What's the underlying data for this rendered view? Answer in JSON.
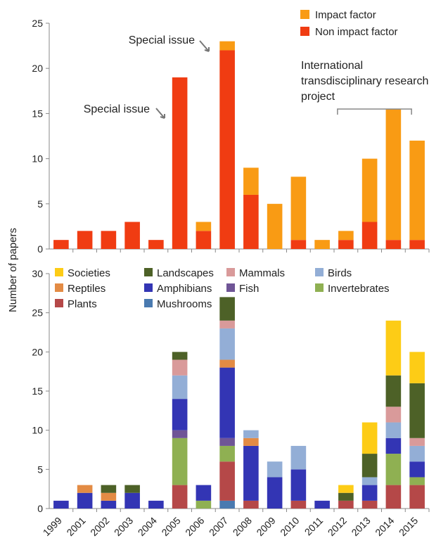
{
  "chart_data": [
    {
      "type": "bar",
      "stacked": true,
      "title": "",
      "xlabel": "",
      "ylabel": "Number of papers",
      "ylim": [
        0,
        25
      ],
      "yticks": [
        0,
        5,
        10,
        15,
        20,
        25
      ],
      "categories": [
        "1999",
        "2001",
        "2002",
        "2003",
        "2004",
        "2005",
        "2006",
        "2007",
        "2008",
        "2009",
        "2010",
        "2011",
        "2012",
        "2013",
        "2014",
        "2015"
      ],
      "legend_position": "top-right",
      "series": [
        {
          "name": "Non impact factor",
          "color": "#f03c12",
          "values": [
            1,
            2,
            2,
            3,
            1,
            19,
            2,
            22,
            6,
            0,
            1,
            0,
            1,
            3,
            1,
            1
          ]
        },
        {
          "name": "Impact factor",
          "color": "#f99b14",
          "values": [
            0,
            0,
            0,
            0,
            0,
            0,
            1,
            1,
            3,
            5,
            7,
            1,
            1,
            7,
            14.5,
            11
          ]
        }
      ],
      "annotations": [
        {
          "text": "Special issue",
          "category": "2005"
        },
        {
          "text": "Special issue",
          "category": "2007"
        },
        {
          "text": "International transdisciplinary research project",
          "lines": [
            "International",
            "transdisciplinary research",
            "project"
          ],
          "range": [
            "2012",
            "2015"
          ]
        }
      ]
    },
    {
      "type": "bar",
      "stacked": true,
      "title": "",
      "xlabel": "",
      "ylabel": "Number of papers",
      "ylim": [
        0,
        30
      ],
      "yticks": [
        0,
        5,
        10,
        15,
        20,
        25,
        30
      ],
      "categories": [
        "1999",
        "2001",
        "2002",
        "2003",
        "2004",
        "2005",
        "2006",
        "2007",
        "2008",
        "2009",
        "2010",
        "2011",
        "2012",
        "2013",
        "2014",
        "2015"
      ],
      "legend_position": "top",
      "series": [
        {
          "name": "Mushrooms",
          "color": "#4a7ab0",
          "values": [
            0,
            0,
            0,
            0,
            0,
            0,
            0,
            1,
            0,
            0,
            0,
            0,
            0,
            0,
            0,
            0
          ]
        },
        {
          "name": "Plants",
          "color": "#b54848",
          "values": [
            0,
            0,
            0,
            0,
            0,
            3,
            0,
            5,
            1,
            0,
            1,
            0,
            1,
            1,
            3,
            3
          ]
        },
        {
          "name": "Invertebrates",
          "color": "#8fb052",
          "values": [
            0,
            0,
            0,
            0,
            0,
            6,
            1,
            2,
            0,
            0,
            0,
            0,
            0,
            0,
            4,
            1
          ]
        },
        {
          "name": "Fish",
          "color": "#6f5596",
          "values": [
            0,
            0,
            0,
            0,
            0,
            1,
            0,
            1,
            0,
            0,
            0,
            0,
            0,
            0,
            0,
            0
          ]
        },
        {
          "name": "Amphibians",
          "color": "#3335b4",
          "values": [
            1,
            2,
            1,
            2,
            1,
            4,
            2,
            9,
            7,
            4,
            4,
            1,
            0,
            2,
            2,
            2
          ]
        },
        {
          "name": "Reptiles",
          "color": "#e38b44",
          "values": [
            0,
            1,
            1,
            0,
            0,
            0,
            0,
            1,
            1,
            0,
            0,
            0,
            0,
            0,
            0,
            0
          ]
        },
        {
          "name": "Birds",
          "color": "#93aed6",
          "values": [
            0,
            0,
            0,
            0,
            0,
            3,
            0,
            4,
            1,
            2,
            3,
            0,
            0,
            1,
            2,
            2
          ]
        },
        {
          "name": "Mammals",
          "color": "#d99a9a",
          "values": [
            0,
            0,
            0,
            0,
            0,
            2,
            0,
            1,
            0,
            0,
            0,
            0,
            0,
            0,
            2,
            1
          ]
        },
        {
          "name": "Landscapes",
          "color": "#4d6127",
          "values": [
            0,
            0,
            1,
            1,
            0,
            1,
            0,
            3,
            0,
            0,
            0,
            0,
            1,
            3,
            4,
            7
          ]
        },
        {
          "name": "Societies",
          "color": "#fdcc16",
          "values": [
            0,
            0,
            0,
            0,
            0,
            0,
            0,
            0,
            0,
            0,
            0,
            0,
            1,
            4,
            7,
            4
          ]
        }
      ],
      "legend_rows": [
        [
          "Societies",
          "Landscapes",
          "Mammals",
          "Birds"
        ],
        [
          "Reptiles",
          "Amphibians",
          "Fish",
          "Invertebrates"
        ],
        [
          "Plants",
          "Mushrooms"
        ]
      ]
    }
  ]
}
